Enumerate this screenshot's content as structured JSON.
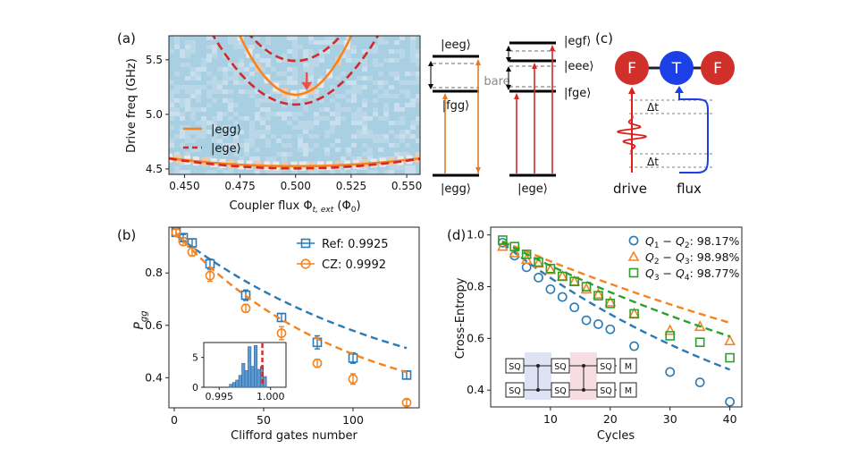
{
  "colors": {
    "blue": "#2a7ab5",
    "orange": "#f5841f",
    "green": "#2ca02c",
    "red": "#d62728",
    "heat_bg": "#a9cfe3",
    "heat_light": "#cfe2ee",
    "node_red": "#d12f2a",
    "node_blue": "#1d3fe6",
    "gray": "#8a8a8a"
  },
  "panel_labels": {
    "a": "(a)",
    "b": "(b)",
    "c": "(c)",
    "d": "(d)"
  },
  "chart_data": [
    {
      "id": "a",
      "type": "heatmap",
      "xlabel_main": "Coupler flux Φ",
      "xlabel_sub": "t, ext",
      "xlabel_unit": "(Φ",
      "xlabel_unit_sub": "0",
      "xlabel_close": ")",
      "ylabel": "Drive freq (GHz)",
      "xlim": [
        0.443,
        0.556
      ],
      "ylim": [
        4.45,
        5.72
      ],
      "xticks": [
        0.45,
        0.475,
        0.5,
        0.525,
        0.55
      ],
      "xtick_labels": [
        "0.450",
        "0.475",
        "0.500",
        "0.525",
        "0.550"
      ],
      "yticks": [
        4.5,
        5.0,
        5.5
      ],
      "ytick_labels": [
        "4.5",
        "5.0",
        "5.5"
      ],
      "curves": [
        {
          "name": "|egg⟩ upper",
          "style": "solid",
          "color_key": "orange",
          "center": 5.18,
          "curv": 860
        },
        {
          "name": "|ege⟩ upper+",
          "style": "dashed",
          "color_key": "red",
          "center": 5.49,
          "curv": 560
        },
        {
          "name": "|ege⟩ upper-",
          "style": "dashed",
          "color_key": "red",
          "center": 5.09,
          "curv": 460
        },
        {
          "name": "|egg⟩ lower",
          "style": "solid",
          "color_key": "orange",
          "center": 4.525,
          "curv": 23
        },
        {
          "name": "|ege⟩ lower",
          "style": "dashed",
          "color_key": "red",
          "center": 4.505,
          "curv": 28
        }
      ],
      "legend": [
        {
          "label": "|egg⟩",
          "style": "solid",
          "color_key": "orange"
        },
        {
          "label": "|ege⟩",
          "style": "dashed",
          "color_key": "red"
        }
      ],
      "arrow_at": {
        "x": 0.505,
        "y": 5.27
      }
    },
    {
      "id": "a-levels",
      "type": "diagram",
      "states_left": [
        "|eeg⟩",
        "|fgg⟩",
        "|egg⟩"
      ],
      "states_right": [
        "|egf⟩",
        "|eee⟩",
        "|fge⟩",
        "|ege⟩"
      ],
      "bare_label": "bare"
    },
    {
      "id": "b",
      "type": "line",
      "xlabel": "Clifford gates number",
      "ylabel": "P",
      "ylabel_sub": "gg",
      "xlim": [
        -3,
        137
      ],
      "ylim": [
        0.285,
        0.975
      ],
      "xticks": [
        0,
        50,
        100
      ],
      "yticks": [
        0.4,
        0.6,
        0.8
      ],
      "series": [
        {
          "name": "Ref: 0.9925",
          "color_key": "blue",
          "marker": "square",
          "x": [
            1,
            5,
            10,
            20,
            40,
            60,
            80,
            100,
            130
          ],
          "y": [
            0.955,
            0.935,
            0.915,
            0.835,
            0.715,
            0.63,
            0.535,
            0.475,
            0.41
          ],
          "err": [
            0.012,
            0.012,
            0.015,
            0.018,
            0.02,
            0.015,
            0.025,
            0.02,
            0.015
          ],
          "fit": {
            "A": 0.7,
            "p": 0.9925,
            "B": 0.25
          }
        },
        {
          "name": "CZ: 0.9992",
          "color_key": "orange",
          "marker": "circle",
          "x": [
            1,
            5,
            10,
            20,
            40,
            60,
            80,
            100,
            130
          ],
          "y": [
            0.955,
            0.92,
            0.88,
            0.79,
            0.665,
            0.57,
            0.455,
            0.395,
            0.305
          ],
          "err": [
            0.012,
            0.015,
            0.015,
            0.022,
            0.015,
            0.025,
            0.015,
            0.02,
            0.012
          ],
          "fit": {
            "A": 0.725,
            "p": 0.9896,
            "B": 0.235
          }
        }
      ],
      "inset": {
        "type": "histogram",
        "xlim": [
          0.9935,
          1.0015
        ],
        "ylim": [
          0,
          7.5
        ],
        "xticks": [
          0.995,
          1.0
        ],
        "xtick_labels": [
          "0.995",
          "1.000"
        ],
        "yticks": [
          0,
          5
        ],
        "ytick_labels": [
          "0",
          "5"
        ],
        "bins": [
          0.996,
          0.9963,
          0.9966,
          0.9969,
          0.9972,
          0.9975,
          0.9978,
          0.9981,
          0.9984,
          0.9987,
          0.999,
          0.9993,
          0.9996
        ],
        "counts": [
          0.5,
          0.8,
          1.2,
          2,
          4,
          2.8,
          6.8,
          3.5,
          7,
          3,
          3.5,
          1.8
        ],
        "mark": 0.9992
      }
    },
    {
      "id": "d",
      "type": "line",
      "xlabel": "Cycles",
      "ylabel": "Cross-Entropy",
      "xlim": [
        0,
        42
      ],
      "ylim": [
        0.335,
        1.03
      ],
      "xticks": [
        10,
        20,
        30,
        40
      ],
      "yticks": [
        0.4,
        0.6,
        0.8,
        1.0
      ],
      "series": [
        {
          "name": "Q",
          "i": "1",
          "j": "2",
          "value": ": 98.17%",
          "color_key": "blue",
          "marker": "circle",
          "x": [
            2,
            4,
            6,
            8,
            10,
            12,
            14,
            16,
            18,
            20,
            24,
            30,
            35,
            40
          ],
          "y": [
            0.97,
            0.92,
            0.875,
            0.835,
            0.79,
            0.76,
            0.72,
            0.67,
            0.655,
            0.635,
            0.57,
            0.47,
            0.43,
            0.355
          ],
          "fit": {
            "p": 0.9817
          }
        },
        {
          "name": "Q",
          "i": "2",
          "j": "3",
          "value": ": 98.98%",
          "color_key": "orange",
          "marker": "triangle",
          "x": [
            2,
            4,
            6,
            8,
            10,
            12,
            14,
            16,
            18,
            20,
            24,
            30,
            35,
            40
          ],
          "y": [
            0.955,
            0.93,
            0.905,
            0.89,
            0.865,
            0.84,
            0.82,
            0.79,
            0.77,
            0.74,
            0.695,
            0.63,
            0.645,
            0.59
          ],
          "fit": {
            "p": 0.9898
          }
        },
        {
          "name": "Q",
          "i": "3",
          "j": "4",
          "value": ": 98.77%",
          "color_key": "green",
          "marker": "square",
          "x": [
            2,
            4,
            6,
            8,
            10,
            12,
            14,
            16,
            18,
            20,
            24,
            30,
            35,
            40
          ],
          "y": [
            0.98,
            0.955,
            0.925,
            0.895,
            0.87,
            0.84,
            0.82,
            0.8,
            0.765,
            0.735,
            0.695,
            0.61,
            0.585,
            0.525
          ],
          "fit": {
            "p": 0.9877
          }
        }
      ],
      "circuit_labels": {
        "sq": "SQ",
        "m": "M"
      }
    },
    {
      "id": "c",
      "type": "diagram",
      "nodes": [
        "F",
        "T",
        "F"
      ],
      "labels": {
        "dt": "Δt",
        "drive": "drive",
        "flux": "flux"
      }
    }
  ]
}
